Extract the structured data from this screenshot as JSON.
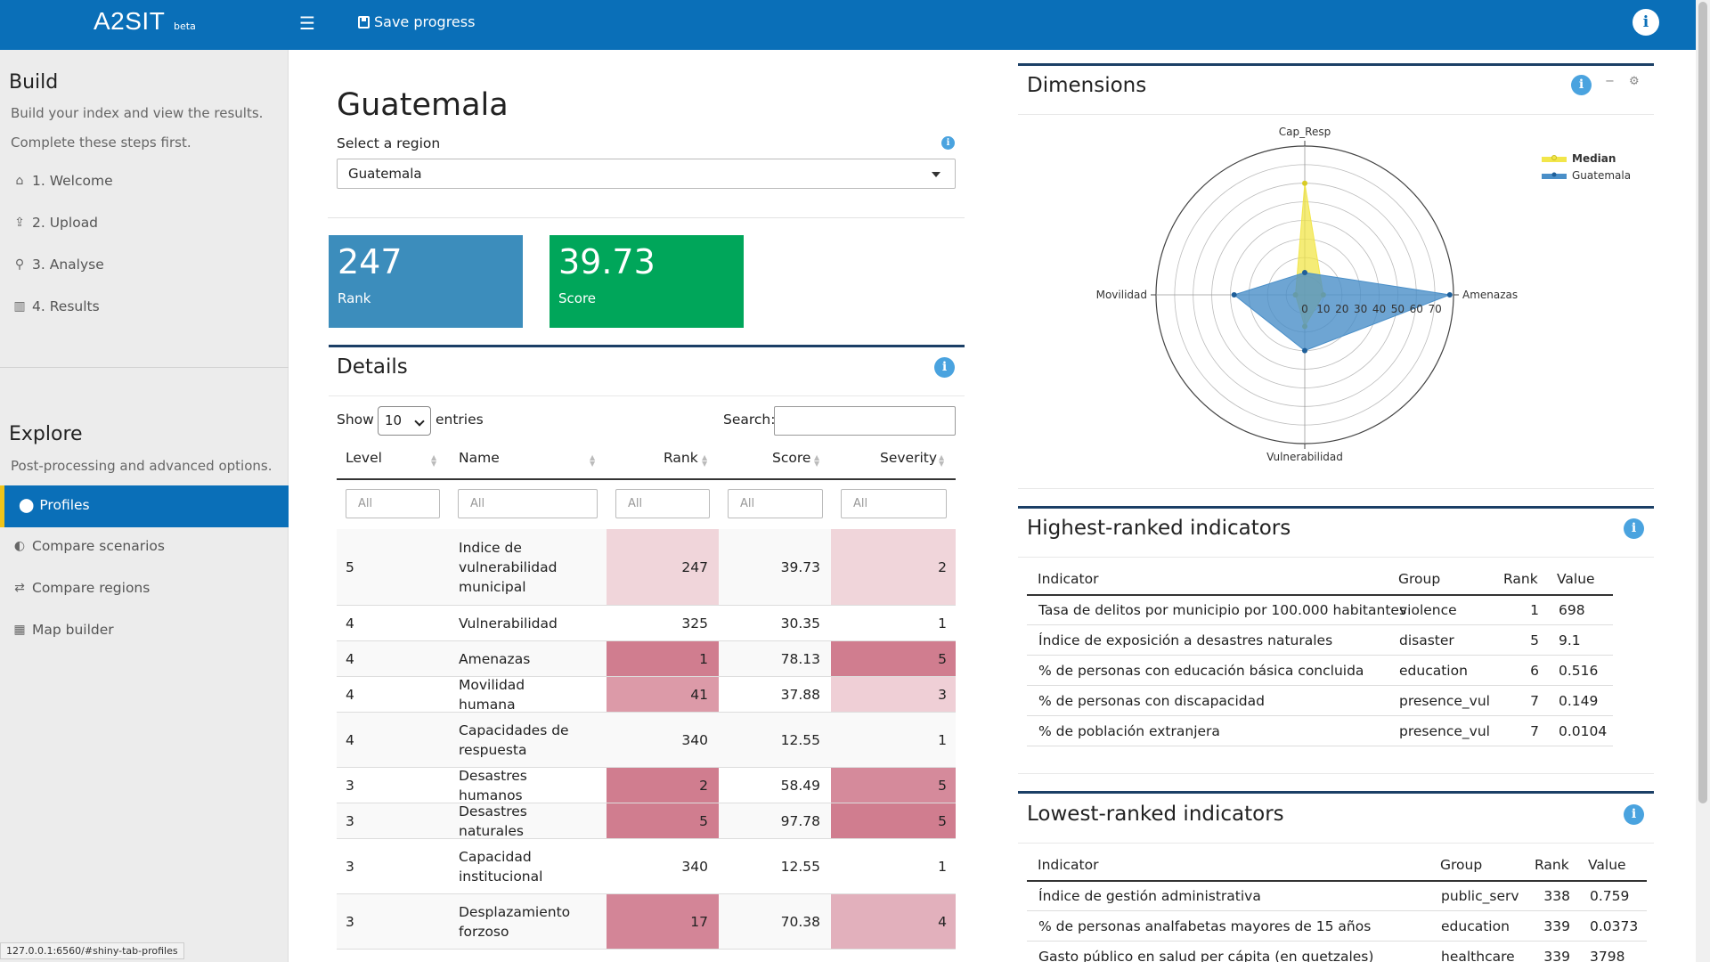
{
  "header": {
    "brand": "A2SIT",
    "brand_sup": "beta",
    "save_label": "Save progress",
    "menu_icon": "hamburger-icon",
    "info_icon": "info-icon"
  },
  "sidebar": {
    "build_title": "Build",
    "build_desc1": "Build your index and view the results.",
    "build_desc2": "Complete these steps first.",
    "build_items": [
      {
        "label": "1. Welcome",
        "icon": "home-icon"
      },
      {
        "label": "2. Upload",
        "icon": "upload-icon"
      },
      {
        "label": "3. Analyse",
        "icon": "search-icon"
      },
      {
        "label": "4. Results",
        "icon": "bar-chart-icon"
      }
    ],
    "explore_title": "Explore",
    "explore_desc": "Post-processing and advanced options.",
    "explore_items": [
      {
        "label": "Profiles",
        "icon": "map-pin-icon",
        "active": true
      },
      {
        "label": "Compare scenarios",
        "icon": "half-circle-icon"
      },
      {
        "label": "Compare regions",
        "icon": "route-icon"
      },
      {
        "label": "Map builder",
        "icon": "map-icon"
      }
    ],
    "status_url": "127.0.0.1:6560/#shiny-tab-profiles"
  },
  "profile": {
    "title": "Guatemala",
    "select_label": "Select a region",
    "selected_region": "Guatemala"
  },
  "value_boxes": [
    {
      "value": "247",
      "label": "Rank",
      "color": "#3c8dbc"
    },
    {
      "value": "39.73",
      "label": "Score",
      "color": "#00a65a"
    }
  ],
  "details": {
    "title": "Details",
    "show_label": "Show",
    "entries_value": "10",
    "entries_label": "entries",
    "search_label": "Search:",
    "columns": [
      "Level",
      "Name",
      "Rank",
      "Score",
      "Severity"
    ],
    "filter_placeholder": "All",
    "rows": [
      {
        "level": "5",
        "name": "Indice de vulnerabilidad municipal",
        "rank": "247",
        "score": "39.73",
        "severity": "2",
        "rank_bg": "#f0d5da",
        "sev_bg": "#f0d5da"
      },
      {
        "level": "4",
        "name": "Vulnerabilidad",
        "rank": "325",
        "score": "30.35",
        "severity": "1",
        "rank_bg": "",
        "sev_bg": ""
      },
      {
        "level": "4",
        "name": "Amenazas",
        "rank": "1",
        "score": "78.13",
        "severity": "5",
        "rank_bg": "#d07d8f",
        "sev_bg": "#d07d8f"
      },
      {
        "level": "4",
        "name": "Movilidad humana",
        "rank": "41",
        "score": "37.88",
        "severity": "3",
        "rank_bg": "#dc9aa8",
        "sev_bg": "#efcfd6"
      },
      {
        "level": "4",
        "name": "Capacidades de respuesta",
        "rank": "340",
        "score": "12.55",
        "severity": "1",
        "rank_bg": "",
        "sev_bg": ""
      },
      {
        "level": "3",
        "name": "Desastres humanos",
        "rank": "2",
        "score": "58.49",
        "severity": "5",
        "rank_bg": "#d07d8f",
        "sev_bg": "#d58a9b"
      },
      {
        "level": "3",
        "name": "Desastres naturales",
        "rank": "5",
        "score": "97.78",
        "severity": "5",
        "rank_bg": "#d07d8f",
        "sev_bg": "#d07d8f"
      },
      {
        "level": "3",
        "name": "Capacidad institucional",
        "rank": "340",
        "score": "12.55",
        "severity": "1",
        "rank_bg": "",
        "sev_bg": ""
      },
      {
        "level": "3",
        "name": "Desplazamiento forzoso",
        "rank": "17",
        "score": "70.38",
        "severity": "4",
        "rank_bg": "#d38597",
        "sev_bg": "#e2b0bc"
      }
    ]
  },
  "dimensions": {
    "title": "Dimensions",
    "icons": [
      "info-icon",
      "minimize-icon",
      "gear-icon"
    ]
  },
  "chart_data": {
    "type": "radar",
    "axes": [
      "Cap_Resp",
      "Amenazas",
      "Vulnerabilidad",
      "Movilidad"
    ],
    "radial_ticks": [
      "0",
      "10",
      "20",
      "30",
      "40",
      "50",
      "60",
      "70"
    ],
    "rmax": 80,
    "legend": "top-right",
    "series": [
      {
        "name": "Median",
        "values": [
          60,
          10,
          17,
          5
        ],
        "color": "#f2e64a"
      },
      {
        "name": "Guatemala",
        "values": [
          12,
          78,
          30,
          38
        ],
        "color": "#4a8fc8"
      }
    ]
  },
  "highest": {
    "title": "Highest-ranked indicators",
    "columns": [
      "Indicator",
      "Group",
      "Rank",
      "Value"
    ],
    "rows": [
      {
        "indicator": "Tasa de delitos por municipio por 100.000 habitantes",
        "group": "violence",
        "rank": "1",
        "value": "698"
      },
      {
        "indicator": "Índice de exposición a desastres naturales",
        "group": "disaster",
        "rank": "5",
        "value": "9.1"
      },
      {
        "indicator": "% de personas con educación básica concluida",
        "group": "education",
        "rank": "6",
        "value": "0.516"
      },
      {
        "indicator": "% de personas con discapacidad",
        "group": "presence_vul",
        "rank": "7",
        "value": "0.149"
      },
      {
        "indicator": "% de población extranjera",
        "group": "presence_vul",
        "rank": "7",
        "value": "0.0104"
      }
    ]
  },
  "lowest": {
    "title": "Lowest-ranked indicators",
    "columns": [
      "Indicator",
      "Group",
      "Rank",
      "Value"
    ],
    "rows": [
      {
        "indicator": "Índice de gestión administrativa",
        "group": "public_serv",
        "rank": "338",
        "value": "0.759"
      },
      {
        "indicator": "% de personas analfabetas mayores de 15 años",
        "group": "education",
        "rank": "339",
        "value": "0.0373"
      },
      {
        "indicator": "Gasto público en salud per cápita (en quetzales)",
        "group": "healthcare",
        "rank": "339",
        "value": "3798"
      }
    ]
  }
}
